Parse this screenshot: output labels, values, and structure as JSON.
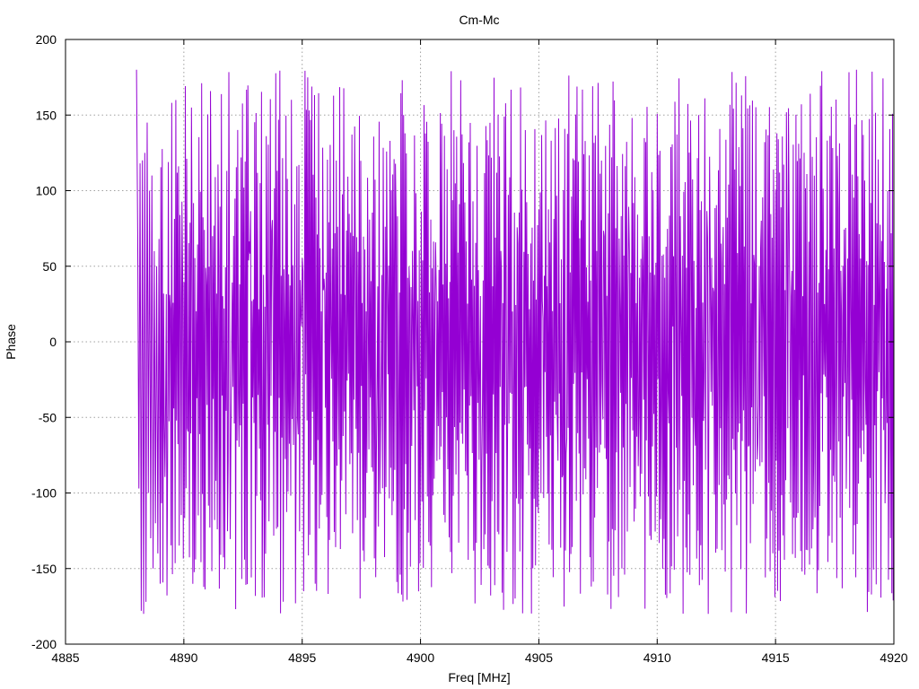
{
  "chart_data": {
    "type": "line",
    "title": "Cm-Mc",
    "xlabel": "Freq [MHz]",
    "ylabel": "Phase",
    "xlim": [
      4885,
      4920
    ],
    "ylim": [
      -200,
      200
    ],
    "grid": true,
    "x_ticks": [
      "4885",
      "4890",
      "4895",
      "4900",
      "4905",
      "4910",
      "4915",
      "4920"
    ],
    "y_ticks": [
      "-200",
      "-150",
      "-100",
      "-50",
      "0",
      "50",
      "100",
      "150",
      "200"
    ],
    "series": [
      {
        "color": "#9400d3",
        "x_start": 4888.0,
        "x_end": 4920.0,
        "num_points": 1100,
        "seed": 7,
        "ylim_data": [
          -180,
          180
        ],
        "x": [
          4888.0,
          4888.05,
          4888.1,
          4888.15,
          4888.2,
          4888.25,
          4888.3,
          4888.35,
          4888.4,
          4888.45,
          4888.5,
          4888.55,
          4888.6,
          4888.65,
          4888.7,
          4888.75,
          4888.8,
          4888.85,
          4888.9,
          4888.95,
          4889.0
        ],
        "y": [
          180,
          70,
          -97,
          118,
          -178,
          120,
          -180,
          125,
          -172,
          145,
          -100,
          100,
          -130,
          110,
          -150,
          60,
          -120,
          50,
          -140,
          68,
          -160
        ]
      }
    ]
  }
}
